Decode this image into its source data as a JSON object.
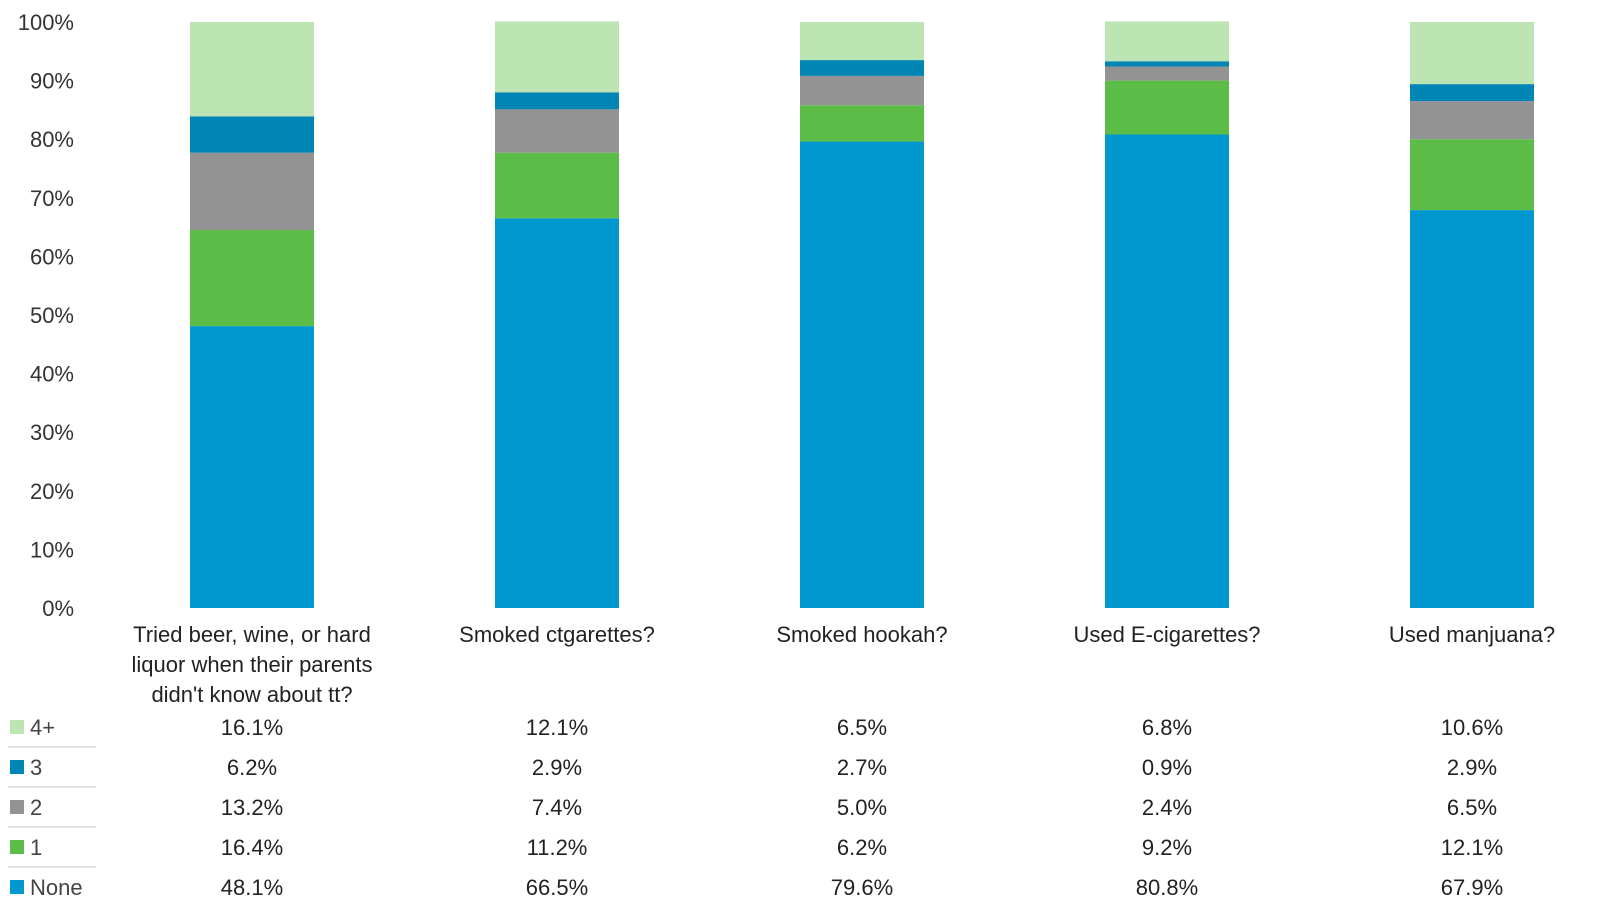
{
  "chart_data": {
    "type": "bar",
    "stacked": true,
    "title": "",
    "xlabel": "",
    "ylabel": "",
    "ylim": [
      0,
      100
    ],
    "y_ticks": [
      "0%",
      "10%",
      "20%",
      "30%",
      "40%",
      "50%",
      "60%",
      "70%",
      "80%",
      "90%",
      "100%"
    ],
    "grid": false,
    "legend": "bottom-left, as data table row labels",
    "categories": [
      [
        "Tried beer, wine, or hard",
        "liquor when their parents",
        "didn't know about tt?"
      ],
      [
        "Smoked ctgarettes?"
      ],
      [
        "Smoked hookah?"
      ],
      [
        "Used E-cigarettes?"
      ],
      [
        "Used manjuana?"
      ]
    ],
    "series": [
      {
        "name": "None",
        "color": "#0098cf",
        "values": [
          48.1,
          66.5,
          79.6,
          80.8,
          67.9
        ],
        "labels": [
          "48.1%",
          "66.5%",
          "79.6%",
          "80.8%",
          "67.9%"
        ]
      },
      {
        "name": "1",
        "color": "#5cbc48",
        "values": [
          16.4,
          11.2,
          6.2,
          9.2,
          12.1
        ],
        "labels": [
          "16.4%",
          "11.2%",
          "6.2%",
          "9.2%",
          "12.1%"
        ]
      },
      {
        "name": "2",
        "color": "#939393",
        "values": [
          13.2,
          7.4,
          5.0,
          2.4,
          6.5
        ],
        "labels": [
          "13.2%",
          "7.4%",
          "5.0%",
          "2.4%",
          "6.5%"
        ]
      },
      {
        "name": "3",
        "color": "#0086b4",
        "values": [
          6.2,
          2.9,
          2.7,
          0.9,
          2.9
        ],
        "labels": [
          "6.2%",
          "2.9%",
          "2.7%",
          "0.9%",
          "2.9%"
        ]
      },
      {
        "name": "4+",
        "color": "#bde4b3",
        "values": [
          16.1,
          12.1,
          6.5,
          6.8,
          10.6
        ],
        "labels": [
          "16.1%",
          "12.1%",
          "6.5%",
          "6.8%",
          "10.6%"
        ]
      }
    ],
    "table_row_order": [
      "4+",
      "3",
      "2",
      "1",
      "None"
    ]
  }
}
